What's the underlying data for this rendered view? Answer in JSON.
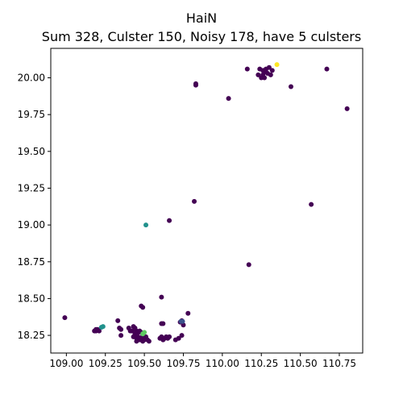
{
  "chart_data": {
    "type": "scatter",
    "title": "HaiN",
    "subtitle": "Sum 328, Culster 150, Noisy 178, have 5 culsters",
    "xlabel": "",
    "ylabel": "",
    "xlim": [
      108.9,
      110.9
    ],
    "ylim": [
      18.13,
      20.2
    ],
    "x_ticks": [
      "109.00",
      "109.25",
      "109.50",
      "109.75",
      "110.00",
      "110.25",
      "110.50",
      "110.75"
    ],
    "x_tick_values": [
      109.0,
      109.25,
      109.5,
      109.75,
      110.0,
      110.25,
      110.5,
      110.75
    ],
    "y_ticks": [
      "18.25",
      "18.50",
      "18.75",
      "19.00",
      "19.25",
      "19.50",
      "19.75",
      "20.00"
    ],
    "y_tick_values": [
      18.25,
      18.5,
      18.75,
      19.0,
      19.25,
      19.5,
      19.75,
      20.0
    ],
    "grid": false,
    "colors": {
      "noise": "#440154",
      "cluster_blue": "#3b528b",
      "cluster_teal": "#21918c",
      "cluster_green": "#5ec962",
      "cluster_yellow": "#fde725"
    },
    "series": [
      {
        "color_key": "noise",
        "points": [
          [
            110.24,
            20.06
          ],
          [
            110.26,
            20.05
          ],
          [
            110.28,
            20.04
          ],
          [
            110.3,
            20.07
          ],
          [
            110.32,
            20.05
          ],
          [
            110.26,
            20.02
          ],
          [
            110.27,
            20.0
          ],
          [
            110.29,
            20.03
          ],
          [
            110.31,
            20.02
          ],
          [
            110.28,
            20.06
          ],
          [
            110.23,
            20.02
          ],
          [
            110.25,
            20.0
          ],
          [
            110.16,
            20.06
          ],
          [
            110.44,
            19.94
          ],
          [
            110.67,
            20.06
          ],
          [
            109.83,
            19.96
          ],
          [
            109.83,
            19.95
          ],
          [
            110.04,
            19.86
          ],
          [
            110.8,
            19.79
          ],
          [
            109.82,
            19.16
          ],
          [
            110.57,
            19.14
          ],
          [
            109.66,
            19.03
          ],
          [
            110.17,
            18.73
          ],
          [
            109.61,
            18.51
          ],
          [
            109.48,
            18.45
          ],
          [
            109.49,
            18.44
          ],
          [
            108.99,
            18.37
          ],
          [
            109.78,
            18.4
          ],
          [
            109.18,
            18.28
          ],
          [
            109.19,
            18.29
          ],
          [
            109.2,
            18.29
          ],
          [
            109.19,
            18.28
          ],
          [
            109.21,
            18.28
          ],
          [
            109.33,
            18.35
          ],
          [
            109.35,
            18.29
          ],
          [
            109.34,
            18.3
          ],
          [
            109.35,
            18.25
          ],
          [
            109.4,
            18.3
          ],
          [
            109.41,
            18.28
          ],
          [
            109.42,
            18.28
          ],
          [
            109.43,
            18.31
          ],
          [
            109.44,
            18.3
          ],
          [
            109.45,
            18.28
          ],
          [
            109.46,
            18.27
          ],
          [
            109.47,
            18.28
          ],
          [
            109.48,
            18.27
          ],
          [
            109.44,
            18.26
          ],
          [
            109.45,
            18.23
          ],
          [
            109.46,
            18.24
          ],
          [
            109.47,
            18.22
          ],
          [
            109.48,
            18.23
          ],
          [
            109.49,
            18.21
          ],
          [
            109.5,
            18.22
          ],
          [
            109.51,
            18.24
          ],
          [
            109.52,
            18.22
          ],
          [
            109.53,
            18.21
          ],
          [
            109.45,
            18.21
          ],
          [
            109.43,
            18.24
          ],
          [
            109.49,
            18.25
          ],
          [
            109.6,
            18.23
          ],
          [
            109.61,
            18.24
          ],
          [
            109.62,
            18.22
          ],
          [
            109.63,
            18.23
          ],
          [
            109.64,
            18.24
          ],
          [
            109.65,
            18.23
          ],
          [
            109.66,
            18.24
          ],
          [
            109.7,
            18.22
          ],
          [
            109.72,
            18.23
          ],
          [
            109.74,
            18.25
          ],
          [
            109.61,
            18.33
          ],
          [
            109.62,
            18.33
          ],
          [
            109.75,
            18.32
          ],
          [
            109.74,
            18.35
          ],
          [
            109.73,
            18.34
          ]
        ]
      },
      {
        "color_key": "cluster_blue",
        "points": [
          [
            109.735,
            18.345
          ],
          [
            109.745,
            18.345
          ]
        ]
      },
      {
        "color_key": "cluster_teal",
        "points": [
          [
            109.225,
            18.305
          ],
          [
            109.235,
            18.31
          ],
          [
            109.51,
            19.0
          ]
        ]
      },
      {
        "color_key": "cluster_green",
        "points": [
          [
            109.49,
            18.26
          ],
          [
            109.5,
            18.27
          ]
        ]
      },
      {
        "color_key": "cluster_yellow",
        "points": [
          [
            110.35,
            20.09
          ]
        ]
      }
    ]
  }
}
